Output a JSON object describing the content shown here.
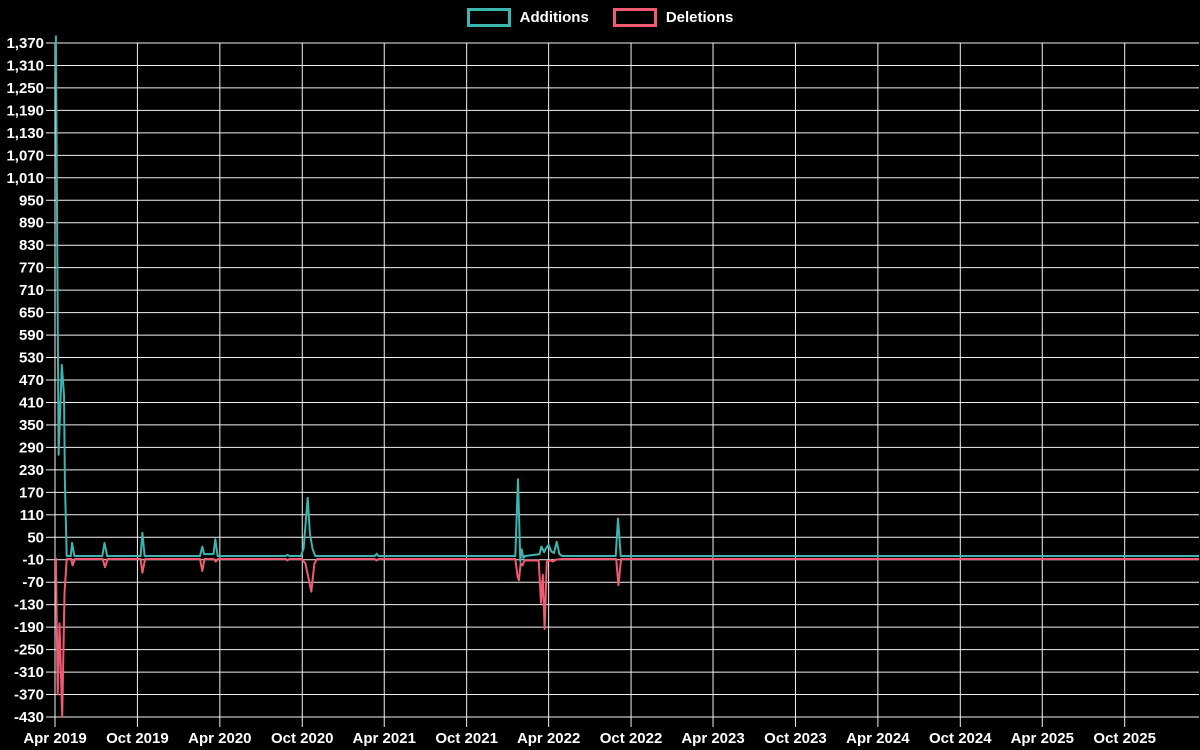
{
  "legend": {
    "items": [
      {
        "label": "Additions",
        "color": "#3cb4af"
      },
      {
        "label": "Deletions",
        "color": "#f05a73"
      }
    ]
  },
  "chart_data": {
    "type": "line",
    "title": "",
    "background_color": "#000000",
    "grid_color": "#f2f2f2",
    "text_color": "#ffffff",
    "legend_position": "top-center",
    "x_axis": {
      "start_date": "2019-04-01",
      "end_date": "2026-03-15",
      "tick_dates": [
        "2019-04-01",
        "2019-10-01",
        "2020-04-01",
        "2020-10-01",
        "2021-04-01",
        "2021-10-01",
        "2022-04-01",
        "2022-10-01",
        "2023-04-01",
        "2023-10-01",
        "2024-04-01",
        "2024-10-01",
        "2025-04-01",
        "2025-10-01"
      ],
      "tick_labels": [
        "Apr 2019",
        "Oct 2019",
        "Apr 2020",
        "Oct 2020",
        "Apr 2021",
        "Oct 2021",
        "Apr 2022",
        "Oct 2022",
        "Apr 2023",
        "Oct 2023",
        "Apr 2024",
        "Oct 2024",
        "Apr 2025",
        "Oct 2025"
      ]
    },
    "y_axis": {
      "min": -430,
      "max": 1370,
      "step": 60,
      "tick_labels": [
        "1,370",
        "1,310",
        "1,250",
        "1,190",
        "1,130",
        "1,070",
        "1,010",
        "950",
        "890",
        "830",
        "770",
        "710",
        "650",
        "590",
        "530",
        "470",
        "410",
        "350",
        "290",
        "230",
        "170",
        "110",
        "50",
        "-10",
        "-70",
        "-130",
        "-190",
        "-250",
        "-310",
        "-370",
        "-430"
      ]
    },
    "series": [
      {
        "name": "Additions",
        "color": "#3cb4af",
        "points": [
          [
            "2019-04-03",
            1390
          ],
          [
            "2019-04-09",
            270
          ],
          [
            "2019-04-16",
            510
          ],
          [
            "2019-04-21",
            430
          ],
          [
            "2019-04-23",
            200
          ],
          [
            "2019-04-27",
            0
          ],
          [
            "2019-05-06",
            0
          ],
          [
            "2019-05-09",
            35
          ],
          [
            "2019-05-14",
            0
          ],
          [
            "2019-07-15",
            0
          ],
          [
            "2019-07-20",
            35
          ],
          [
            "2019-07-26",
            0
          ],
          [
            "2019-10-08",
            0
          ],
          [
            "2019-10-12",
            62
          ],
          [
            "2019-10-17",
            0
          ],
          [
            "2020-02-17",
            0
          ],
          [
            "2020-02-22",
            25
          ],
          [
            "2020-02-26",
            5
          ],
          [
            "2020-03-18",
            5
          ],
          [
            "2020-03-22",
            45
          ],
          [
            "2020-03-27",
            0
          ],
          [
            "2020-08-25",
            0
          ],
          [
            "2020-08-29",
            3
          ],
          [
            "2020-09-02",
            0
          ],
          [
            "2020-09-28",
            0
          ],
          [
            "2020-10-04",
            20
          ],
          [
            "2020-10-13",
            155
          ],
          [
            "2020-10-18",
            60
          ],
          [
            "2020-10-24",
            18
          ],
          [
            "2020-10-30",
            0
          ],
          [
            "2021-03-11",
            0
          ],
          [
            "2021-03-15",
            6
          ],
          [
            "2021-03-19",
            0
          ],
          [
            "2022-01-17",
            0
          ],
          [
            "2022-01-23",
            205
          ],
          [
            "2022-01-28",
            -15
          ],
          [
            "2022-01-31",
            18
          ],
          [
            "2022-02-04",
            -5
          ],
          [
            "2022-02-08",
            0
          ],
          [
            "2022-03-12",
            5
          ],
          [
            "2022-03-16",
            25
          ],
          [
            "2022-03-22",
            10
          ],
          [
            "2022-03-26",
            20
          ],
          [
            "2022-04-01",
            30
          ],
          [
            "2022-04-07",
            12
          ],
          [
            "2022-04-13",
            8
          ],
          [
            "2022-04-19",
            38
          ],
          [
            "2022-04-25",
            5
          ],
          [
            "2022-05-01",
            0
          ],
          [
            "2022-08-28",
            0
          ],
          [
            "2022-09-02",
            100
          ],
          [
            "2022-09-08",
            0
          ],
          [
            "2026-03-15",
            0
          ]
        ]
      },
      {
        "name": "Deletions",
        "color": "#f05a73",
        "points": [
          [
            "2019-04-03",
            -5
          ],
          [
            "2019-04-07",
            -370
          ],
          [
            "2019-04-11",
            -180
          ],
          [
            "2019-04-17",
            -430
          ],
          [
            "2019-04-22",
            -100
          ],
          [
            "2019-04-27",
            -8
          ],
          [
            "2019-05-07",
            -8
          ],
          [
            "2019-05-10",
            -25
          ],
          [
            "2019-05-15",
            -8
          ],
          [
            "2019-07-16",
            -8
          ],
          [
            "2019-07-21",
            -30
          ],
          [
            "2019-07-27",
            -8
          ],
          [
            "2019-10-08",
            -8
          ],
          [
            "2019-10-12",
            -45
          ],
          [
            "2019-10-18",
            -8
          ],
          [
            "2020-02-17",
            -8
          ],
          [
            "2020-02-22",
            -40
          ],
          [
            "2020-02-27",
            -8
          ],
          [
            "2020-03-18",
            -8
          ],
          [
            "2020-03-23",
            -15
          ],
          [
            "2020-03-28",
            -8
          ],
          [
            "2020-08-26",
            -8
          ],
          [
            "2020-08-29",
            -12
          ],
          [
            "2020-09-02",
            -8
          ],
          [
            "2020-09-30",
            -8
          ],
          [
            "2020-10-08",
            -20
          ],
          [
            "2020-10-15",
            -60
          ],
          [
            "2020-10-21",
            -95
          ],
          [
            "2020-10-28",
            -20
          ],
          [
            "2020-11-03",
            -8
          ],
          [
            "2021-03-11",
            -8
          ],
          [
            "2021-03-15",
            -12
          ],
          [
            "2021-03-19",
            -8
          ],
          [
            "2022-01-17",
            -8
          ],
          [
            "2022-01-22",
            -55
          ],
          [
            "2022-01-25",
            -65
          ],
          [
            "2022-01-29",
            -20
          ],
          [
            "2022-02-02",
            -25
          ],
          [
            "2022-02-06",
            -12
          ],
          [
            "2022-03-10",
            -12
          ],
          [
            "2022-03-15",
            -125
          ],
          [
            "2022-03-19",
            -50
          ],
          [
            "2022-03-23",
            -195
          ],
          [
            "2022-03-28",
            -15
          ],
          [
            "2022-04-05",
            -12
          ],
          [
            "2022-04-11",
            -15
          ],
          [
            "2022-04-17",
            -10
          ],
          [
            "2022-05-01",
            -8
          ],
          [
            "2022-08-29",
            -8
          ],
          [
            "2022-09-03",
            -78
          ],
          [
            "2022-09-09",
            -8
          ],
          [
            "2026-03-15",
            -8
          ]
        ]
      }
    ]
  }
}
